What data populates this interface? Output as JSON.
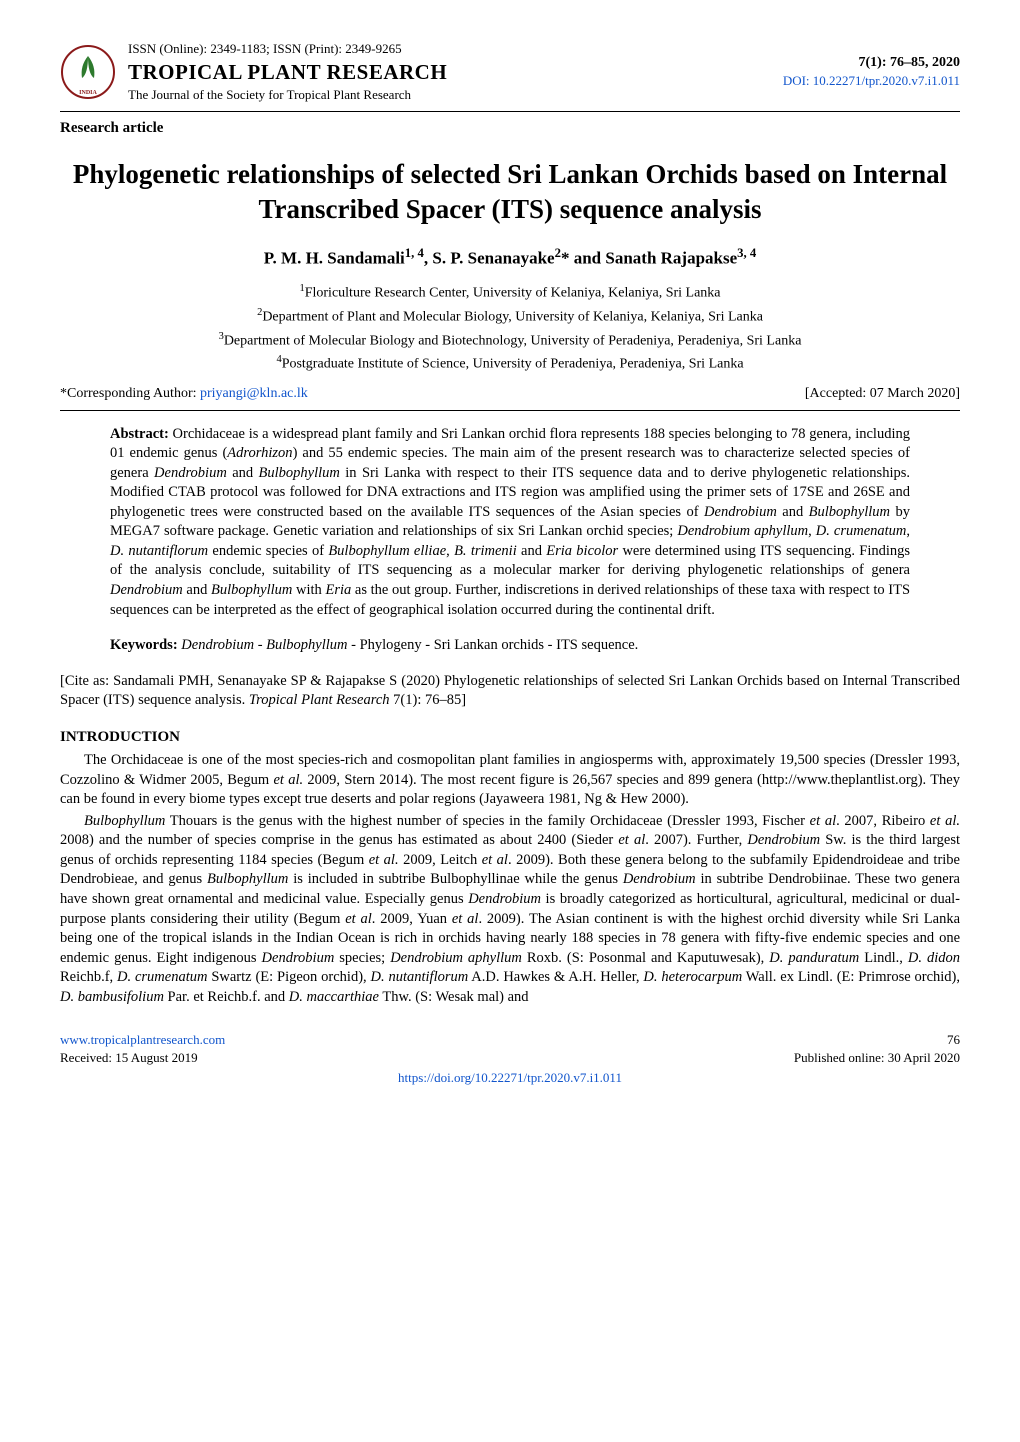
{
  "header": {
    "issn": "ISSN (Online): 2349-1183; ISSN (Print): 2349-9265",
    "journal_title": "TROPICAL PLANT RESEARCH",
    "journal_sub": "The Journal of the Society for Tropical Plant Research",
    "volume_info": "7(1): 76–85, 2020",
    "doi": "DOI: 10.22271/tpr.2020.v7.i1.011",
    "logo_colors": {
      "border": "#8b1a1a",
      "leaf": "#2d7a2d",
      "text": "#8b1a1a"
    }
  },
  "article_type": "Research article",
  "title": "Phylogenetic relationships of selected Sri Lankan Orchids based on Internal Transcribed Spacer (ITS) sequence analysis",
  "authors_html": "P. M. H. Sandamali<sup>1, 4</sup>, S. P. Senanayake<sup>2</sup>* and Sanath Rajapakse<sup>3, 4</sup>",
  "affiliations": [
    "<sup>1</sup>Floriculture Research Center, University of Kelaniya, Kelaniya, Sri Lanka",
    "<sup>2</sup>Department of Plant and Molecular Biology, University of Kelaniya, Kelaniya, Sri Lanka",
    "<sup>3</sup>Department of Molecular Biology and Biotechnology, University of Peradeniya, Peradeniya, Sri Lanka",
    "<sup>4</sup>Postgraduate Institute of Science, University of Peradeniya, Peradeniya, Sri Lanka"
  ],
  "corresponding": {
    "label": "*Corresponding Author:",
    "email": "priyangi@kln.ac.lk",
    "accepted": "[Accepted: 07 March 2020]"
  },
  "abstract": {
    "label": "Abstract:",
    "text": "Orchidaceae is a widespread plant family and Sri Lankan orchid flora represents 188 species belonging to 78 genera, including 01 endemic genus (<span class=\"italic\">Adrorhizon</span>) and 55 endemic species. The main aim of the present research was to characterize selected species of genera <span class=\"italic\">Dendrobium</span> and <span class=\"italic\">Bulbophyllum</span> in Sri Lanka with respect to their ITS sequence data and to derive phylogenetic relationships. Modified CTAB protocol was followed for DNA extractions and ITS region was amplified using the primer sets of 17SE and 26SE and phylogenetic trees were constructed based on the available ITS sequences of the Asian species of <span class=\"italic\">Dendrobium</span> and <span class=\"italic\">Bulbophyllum</span> by MEGA7 software package. Genetic variation and relationships of six Sri Lankan orchid species; <span class=\"italic\">Dendrobium aphyllum</span>, <span class=\"italic\">D. crumenatum</span>, <span class=\"italic\">D. nutantiflorum</span> endemic species of <span class=\"italic\">Bulbophyllum elliae</span>, <span class=\"italic\">B. trimenii</span> and <span class=\"italic\">Eria bicolor</span> were determined using ITS sequencing. Findings of the analysis conclude, suitability of ITS sequencing as a molecular marker for deriving phylogenetic relationships of genera <span class=\"italic\">Dendrobium</span> and <span class=\"italic\">Bulbophyllum</span> with <span class=\"italic\">Eria</span> as the out group. Further, indiscretions in derived relationships of these taxa with respect to ITS sequences can be interpreted as the effect of geographical isolation occurred during the continental drift."
  },
  "keywords": {
    "label": "Keywords:",
    "text": "<span class=\"italic\">Dendrobium</span> - <span class=\"italic\">Bulbophyllum</span> - Phylogeny - Sri Lankan orchids - ITS sequence."
  },
  "citation": "[Cite as: Sandamali PMH, Senanayake SP &amp; Rajapakse S (2020) Phylogenetic relationships of selected Sri Lankan Orchids based on Internal Transcribed Spacer (ITS) sequence analysis. <span class=\"italic\">Tropical Plant Research</span> 7(1): 76–85]",
  "intro_heading": "INTRODUCTION",
  "intro_paras": [
    "The Orchidaceae is one of the most species-rich and cosmopolitan plant families in angiosperms with, approximately 19,500 species (Dressler 1993, Cozzolino &amp; Widmer 2005, Begum <span class=\"italic\">et al.</span> 2009, Stern 2014). The most recent figure is 26,567 species and 899 genera (http://www.theplantlist.org). They can be found in every biome types except true deserts and polar regions (Jayaweera 1981, Ng &amp; Hew 2000).",
    "<span class=\"italic\">Bulbophyllum</span> Thouars is the genus with the highest number of species in the family Orchidaceae (Dressler 1993, Fischer <span class=\"italic\">et al</span>. 2007, Ribeiro <span class=\"italic\">et al.</span> 2008) and the number of species comprise in the genus has estimated as about 2400 (Sieder <span class=\"italic\">et al</span>. 2007). Further, <span class=\"italic\">Dendrobium</span> Sw. is the third largest genus of orchids representing 1184 species (Begum <span class=\"italic\">et al.</span> 2009, Leitch <span class=\"italic\">et al</span>. 2009). Both these genera belong to the subfamily Epidendroideae and tribe Dendrobieae, and genus <span class=\"italic\">Bulbophyllum</span> is included in subtribe Bulbophyllinae while the genus <span class=\"italic\">Dendrobium</span> in subtribe Dendrobiinae. These two genera have shown great ornamental and medicinal value. Especially genus <span class=\"italic\">Dendrobium</span> is broadly categorized as horticultural, agricultural, medicinal or dual-purpose plants considering their utility (Begum <span class=\"italic\">et al</span>. 2009, Yuan <span class=\"italic\">et al</span>. 2009). The Asian continent is with the highest orchid diversity while Sri Lanka being one of the tropical islands in the Indian Ocean is rich in orchids having nearly 188 species in 78 genera with fifty-five endemic species and one endemic genus. Eight indigenous <span class=\"italic\">Dendrobium</span> species; <span class=\"italic\">Dendrobium aphyllum</span> Roxb. (S: Posonmal and Kaputuwesak), <span class=\"italic\">D. panduratum</span> Lindl., <span class=\"italic\">D. didon</span> Reichb.f, <span class=\"italic\">D. crumenatum</span> Swartz (E: Pigeon orchid), <span class=\"italic\">D. nutantiflorum</span> A.D. Hawkes &amp; A.H. Heller, <span class=\"italic\">D. heterocarpum</span> Wall. ex Lindl. (E: Primrose orchid), <span class=\"italic\">D. bambusifolium</span> Par. et Reichb.f. and <span class=\"italic\">D. maccarthiae</span> Thw. (S: Wesak mal) and"
  ],
  "footer": {
    "left_link": "www.tropicalplantresearch.com",
    "left_received": "Received: 15 August 2019",
    "page_num": "76",
    "right_pub": "Published online: 30 April 2020",
    "center_doi": "https://doi.org/10.22271/tpr.2020.v7.i1.011"
  },
  "colors": {
    "link": "#1155cc",
    "text": "#000000",
    "background": "#ffffff"
  }
}
